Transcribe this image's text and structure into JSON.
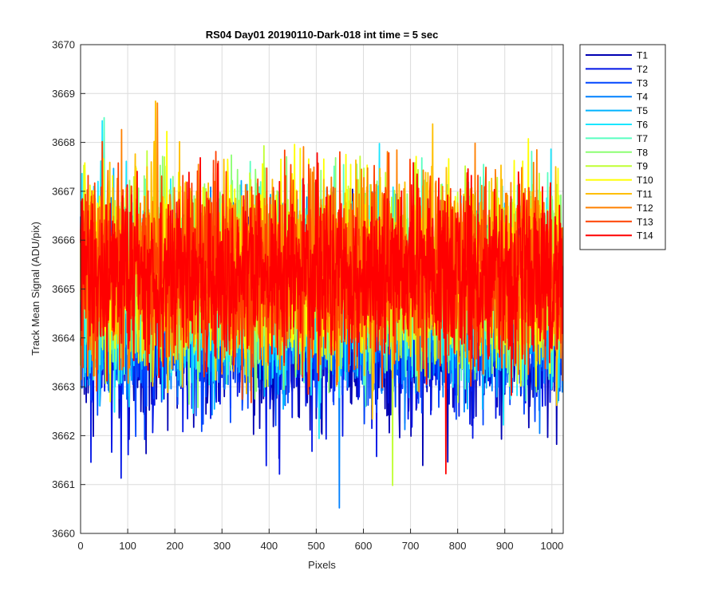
{
  "chart_data": {
    "type": "line",
    "title": "RS04 Day01 20190110-Dark-018 int time = 5 sec",
    "xlabel": "Pixels",
    "ylabel": "Track Mean Signal (ADU/pix)",
    "xlim": [
      0,
      1024
    ],
    "ylim": [
      3660,
      3670
    ],
    "xticks": [
      0,
      100,
      200,
      300,
      400,
      500,
      600,
      700,
      800,
      900,
      1000
    ],
    "yticks": [
      3660,
      3661,
      3662,
      3663,
      3664,
      3665,
      3666,
      3667,
      3668,
      3669,
      3670
    ],
    "grid": true,
    "legend_position": "outside-top-right",
    "n_points": 1024,
    "series": [
      {
        "name": "T1",
        "color": "#0000b3",
        "mean": 3664.0,
        "spread": 0.85
      },
      {
        "name": "T2",
        "color": "#0014e6",
        "mean": 3664.2,
        "spread": 0.85
      },
      {
        "name": "T3",
        "color": "#0046ff",
        "mean": 3664.4,
        "spread": 0.85
      },
      {
        "name": "T4",
        "color": "#0080ff",
        "mean": 3664.6,
        "spread": 0.85
      },
      {
        "name": "T5",
        "color": "#00b3ff",
        "mean": 3664.8,
        "spread": 0.85
      },
      {
        "name": "T6",
        "color": "#1ae6ff",
        "mean": 3665.0,
        "spread": 0.9
      },
      {
        "name": "T7",
        "color": "#59ffc0",
        "mean": 3665.1,
        "spread": 0.9
      },
      {
        "name": "T8",
        "color": "#8cff73",
        "mean": 3665.2,
        "spread": 0.9
      },
      {
        "name": "T9",
        "color": "#c0ff33",
        "mean": 3665.3,
        "spread": 0.9
      },
      {
        "name": "T10",
        "color": "#ffff00",
        "mean": 3665.4,
        "spread": 0.9
      },
      {
        "name": "T11",
        "color": "#ffbf00",
        "mean": 3665.4,
        "spread": 0.9
      },
      {
        "name": "T12",
        "color": "#ff8000",
        "mean": 3665.4,
        "spread": 0.9
      },
      {
        "name": "T13",
        "color": "#ff4000",
        "mean": 3665.3,
        "spread": 0.9
      },
      {
        "name": "T14",
        "color": "#ff0000",
        "mean": 3665.3,
        "spread": 0.85
      }
    ]
  }
}
